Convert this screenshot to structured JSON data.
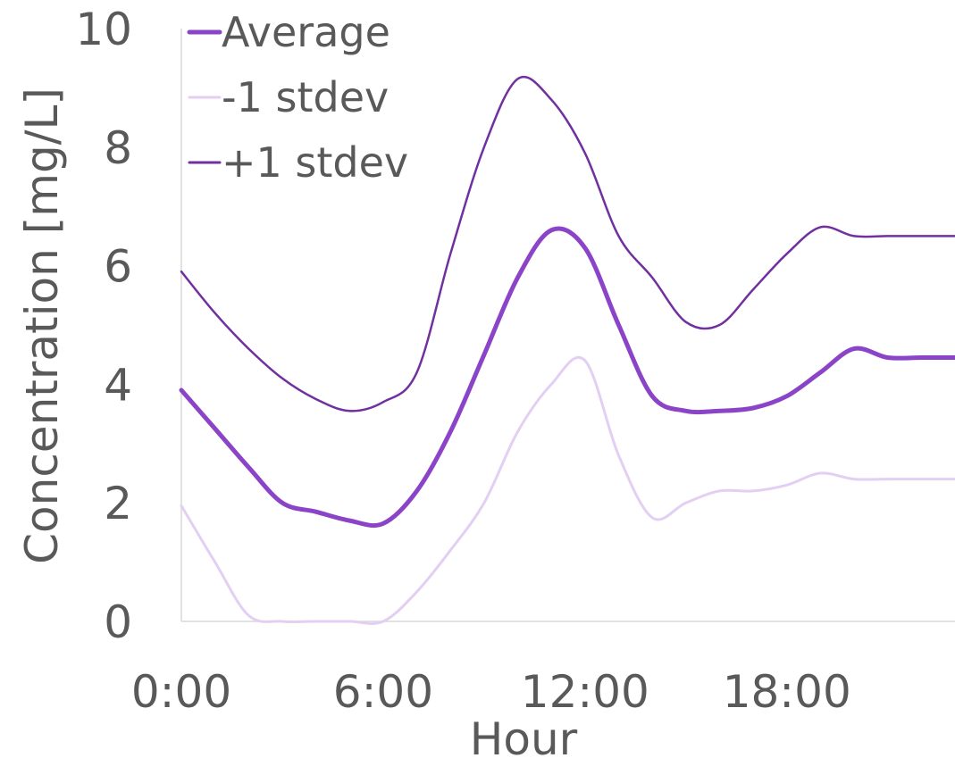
{
  "chart_data": {
    "type": "line",
    "title": "",
    "xlabel": "Hour",
    "ylabel": "Concentration [mg/L]",
    "xlim": [
      0,
      23
    ],
    "ylim": [
      0,
      10
    ],
    "x_ticks": [
      0,
      6,
      12,
      18
    ],
    "x_tick_labels": [
      "0:00",
      "6:00",
      "12:00",
      "18:00"
    ],
    "y_ticks": [
      0,
      2,
      4,
      6,
      8,
      10
    ],
    "y_tick_labels": [
      "0",
      "2",
      "4",
      "6",
      "8",
      "10"
    ],
    "grid": false,
    "legend_position": "top-left",
    "x": [
      0,
      1,
      2,
      3,
      4,
      5,
      6,
      7,
      8,
      9,
      10,
      11,
      12,
      13,
      14,
      15,
      16,
      17,
      18,
      19,
      20,
      21,
      22,
      23
    ],
    "series": [
      {
        "name": "Average",
        "color": "#8b44c8",
        "width": 5,
        "values": [
          3.9,
          3.25,
          2.6,
          2.0,
          1.85,
          1.7,
          1.65,
          2.2,
          3.2,
          4.5,
          5.8,
          6.6,
          6.3,
          5.0,
          3.8,
          3.55,
          3.55,
          3.6,
          3.8,
          4.2,
          4.6,
          4.45,
          4.45,
          4.45
        ]
      },
      {
        "name": "-1 stdev",
        "color": "#e3cff2",
        "width": 3,
        "values": [
          1.95,
          1.0,
          0.1,
          0.0,
          0.0,
          0.0,
          0.0,
          0.5,
          1.2,
          2.0,
          3.2,
          4.0,
          4.4,
          2.8,
          1.75,
          2.0,
          2.2,
          2.2,
          2.3,
          2.5,
          2.4,
          2.4,
          2.4,
          2.4
        ]
      },
      {
        "name": "+1 stdev",
        "color": "#7030a0",
        "width": 2.5,
        "values": [
          5.9,
          5.2,
          4.6,
          4.1,
          3.75,
          3.55,
          3.7,
          4.2,
          6.2,
          8.0,
          9.15,
          8.8,
          7.9,
          6.5,
          5.8,
          5.05,
          5.0,
          5.6,
          6.2,
          6.65,
          6.5,
          6.5,
          6.5,
          6.5
        ]
      }
    ]
  }
}
